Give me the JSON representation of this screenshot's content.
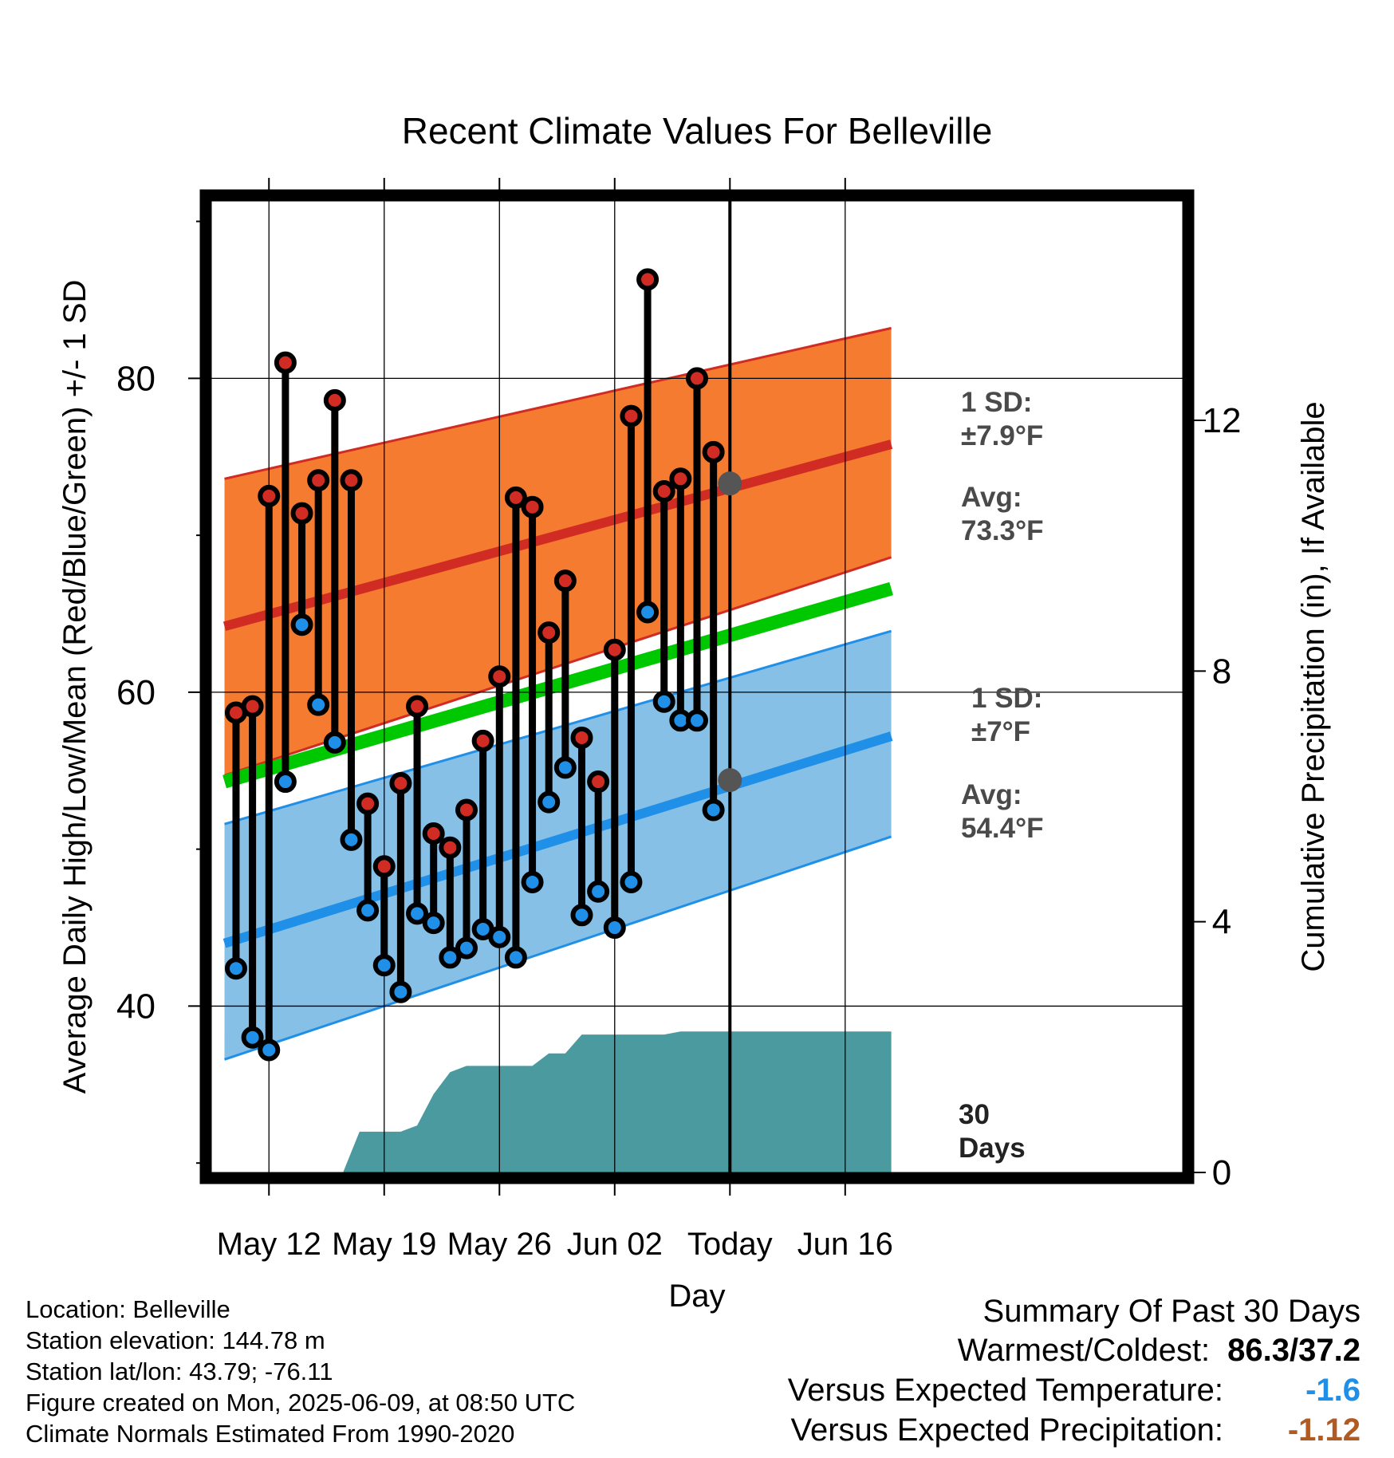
{
  "chart_data": {
    "type": "line",
    "title": "Recent Climate Values For Belleville",
    "xlabel": "Day",
    "ylabel": "Average Daily High/Low/Mean (Red/Blue/Green) +/- 1 SD",
    "y2label": "Cumulative Precipitation (in), If Available",
    "xlim": [
      -3.5,
      55.5
    ],
    "ylim": [
      29.4,
      91.3
    ],
    "y2lim": [
      0,
      15.5
    ],
    "x_ticks": [
      {
        "x": 0,
        "label": "May 12"
      },
      {
        "x": 7,
        "label": "May 19"
      },
      {
        "x": 14,
        "label": "May 26"
      },
      {
        "x": 21,
        "label": "Jun 02"
      },
      {
        "x": 28,
        "label": "Today"
      },
      {
        "x": 35,
        "label": "Jun 16"
      }
    ],
    "y_ticks": [
      40,
      60,
      80
    ],
    "y_minor_ticks": [
      30,
      50,
      70,
      90
    ],
    "y2_ticks": [
      0,
      4,
      8,
      12
    ],
    "today_x": 28,
    "normal_high": {
      "x": [
        -2.7,
        37.8
      ],
      "avg": [
        64.2,
        75.8
      ],
      "lower": [
        54.7,
        68.6
      ],
      "upper": [
        73.6,
        83.2
      ],
      "color": "#d12c24",
      "band_color": "#f47b30"
    },
    "normal_low": {
      "x": [
        -2.7,
        37.8
      ],
      "avg": [
        44.0,
        57.2
      ],
      "lower": [
        36.6,
        50.8
      ],
      "upper": [
        51.6,
        63.9
      ],
      "color": "#1f8fe8",
      "band_color": "#86c0e6"
    },
    "normal_mean": {
      "x": [
        -2.7,
        37.8
      ],
      "y": [
        54.3,
        66.6
      ],
      "color": "#00c800"
    },
    "observed": [
      {
        "x": -2,
        "high": 58.7,
        "low": 42.4
      },
      {
        "x": -1,
        "high": 59.1,
        "low": 38.0
      },
      {
        "x": 0,
        "high": 72.5,
        "low": 37.2
      },
      {
        "x": 1,
        "high": 81.0,
        "low": 54.3
      },
      {
        "x": 2,
        "high": 71.4,
        "low": 64.3
      },
      {
        "x": 3,
        "high": 73.5,
        "low": 59.2
      },
      {
        "x": 4,
        "high": 78.6,
        "low": 56.8
      },
      {
        "x": 5,
        "high": 73.5,
        "low": 50.6
      },
      {
        "x": 6,
        "high": 52.9,
        "low": 46.1
      },
      {
        "x": 7,
        "high": 48.9,
        "low": 42.6
      },
      {
        "x": 8,
        "high": 54.2,
        "low": 40.9
      },
      {
        "x": 9,
        "high": 59.1,
        "low": 45.9
      },
      {
        "x": 10,
        "high": 51.0,
        "low": 45.3
      },
      {
        "x": 11,
        "high": 50.1,
        "low": 43.1
      },
      {
        "x": 12,
        "high": 52.5,
        "low": 43.7
      },
      {
        "x": 13,
        "high": 56.9,
        "low": 44.9
      },
      {
        "x": 14,
        "high": 61.0,
        "low": 44.4
      },
      {
        "x": 15,
        "high": 72.4,
        "low": 43.1
      },
      {
        "x": 16,
        "high": 71.8,
        "low": 47.9
      },
      {
        "x": 17,
        "high": 63.8,
        "low": 53.0
      },
      {
        "x": 18,
        "high": 67.1,
        "low": 55.2
      },
      {
        "x": 19,
        "high": 57.1,
        "low": 45.8
      },
      {
        "x": 20,
        "high": 54.3,
        "low": 47.3
      },
      {
        "x": 21,
        "high": 62.7,
        "low": 45.0
      },
      {
        "x": 22,
        "high": 77.6,
        "low": 47.9
      },
      {
        "x": 23,
        "high": 86.3,
        "low": 65.1
      },
      {
        "x": 24,
        "high": 72.8,
        "low": 59.4
      },
      {
        "x": 25,
        "high": 73.6,
        "low": 58.2
      },
      {
        "x": 26,
        "high": 80.0,
        "low": 58.2
      },
      {
        "x": 27,
        "high": 75.3,
        "low": 52.5
      }
    ],
    "precip": {
      "x": [
        4.5,
        5.5,
        6.5,
        7,
        8,
        9,
        10,
        11,
        12,
        13,
        14,
        15,
        16,
        17,
        18,
        19,
        20,
        21,
        22,
        23,
        24,
        25,
        26,
        27,
        28,
        29,
        30,
        31,
        32,
        33,
        34,
        35,
        36,
        37,
        37.8
      ],
      "y": [
        0,
        0.65,
        0.65,
        0.65,
        0.65,
        0.75,
        1.25,
        1.6,
        1.7,
        1.7,
        1.7,
        1.7,
        1.7,
        1.9,
        1.9,
        2.2,
        2.2,
        2.2,
        2.2,
        2.2,
        2.2,
        2.25,
        2.25,
        2.25,
        2.25,
        2.25,
        2.25,
        2.25,
        2.25,
        2.25,
        2.25,
        2.25,
        2.25,
        2.25,
        2.25
      ],
      "color": "#4a9aa0"
    },
    "annotations": {
      "high_sd": "1 SD:",
      "high_sd_value": "±7.9°F",
      "high_avg": "Avg:",
      "high_avg_value": "73.3°F",
      "low_sd": "1 SD:",
      "low_sd_value": "±7°F",
      "low_avg": "Avg:",
      "low_avg_value": "54.4°F",
      "days_number": "30",
      "days_word": "Days",
      "today_high_avg": 73.3,
      "today_low_avg": 54.4
    }
  },
  "info": {
    "location": "Location: Belleville",
    "elevation": "Station elevation: 144.78 m",
    "latlon": "Station lat/lon: 43.79; -76.11",
    "created": "Figure created on Mon, 2025-06-09, at 08:50 UTC",
    "normals": "Climate Normals Estimated From 1990-2020"
  },
  "summary": {
    "title": "Summary Of Past 30 Days",
    "warmest_label": "Warmest/Coldest:",
    "warmest_value": "86.3/37.2",
    "temp_label": "Versus Expected Temperature:",
    "temp_value": "-1.6",
    "precip_label": "Versus Expected Precipitation:",
    "precip_value": "-1.12"
  }
}
